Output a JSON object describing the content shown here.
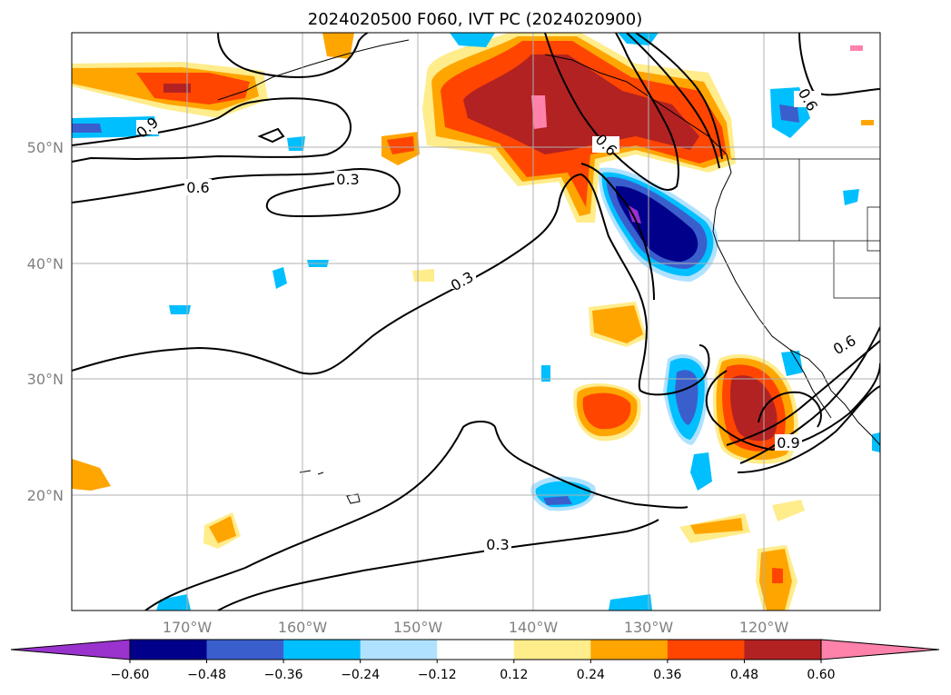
{
  "title": "2024020500 F060, IVT PC (2024020900)",
  "lat_labels": [
    "50°N",
    "40°N",
    "30°N",
    "20°N"
  ],
  "lon_labels": [
    "170°W",
    "160°W",
    "150°W",
    "140°W",
    "130°W",
    "120°W"
  ],
  "colorbar": {
    "ticks": [
      "−0.60",
      "−0.48",
      "−0.36",
      "−0.24",
      "−0.12",
      "0.12",
      "0.24",
      "0.36",
      "0.48",
      "0.60"
    ],
    "colors": [
      "#9a32cd",
      "#00008b",
      "#3a5fcd",
      "#00bfff",
      "#b0e2ff",
      "#ffffff",
      "#ffec8b",
      "#ffa500",
      "#ff4500",
      "#b22222",
      "#ff82ab"
    ]
  },
  "contour_labels": [
    "0.3",
    "0.6",
    "0.9"
  ],
  "colors": {
    "grid": "#b0b0b0",
    "contour": "#000000"
  }
}
